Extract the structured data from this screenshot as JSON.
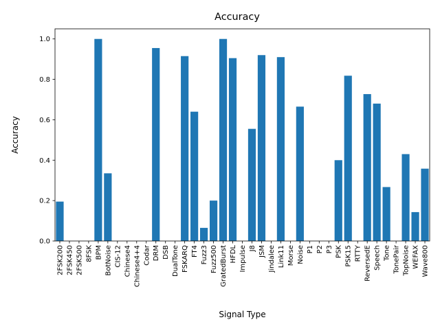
{
  "chart_data": {
    "type": "bar",
    "title": "Accuracy",
    "xlabel": "Signal Type",
    "ylabel": "Accuracy",
    "ylim": [
      0.0,
      1.05
    ],
    "yticks": [
      0.0,
      0.2,
      0.4,
      0.6,
      0.8,
      1.0
    ],
    "ytick_labels": [
      "0.0",
      "0.2",
      "0.4",
      "0.6",
      "0.8",
      "1.0"
    ],
    "grid": false,
    "bar_color": "#1f77b4",
    "categories": [
      "2FSK200",
      "2FSK450",
      "2FSK500",
      "8FSK",
      "BPM",
      "BotNoise",
      "CIS-12",
      "Chinese4",
      "Chinese4+4",
      "Codar",
      "DRM",
      "DSB",
      "DualTone",
      "FSKARQ",
      "FT4",
      "Fuzz3",
      "Fuzz500",
      "GratedBurst",
      "HFDL",
      "Impulse",
      "J8",
      "JSM",
      "Jindalee",
      "Link11",
      "Morse",
      "Noise",
      "P1",
      "P2",
      "P3",
      "PSK",
      "PSK15",
      "RTTY",
      "ReversedE",
      "Speech",
      "Tone",
      "TonePair",
      "TopNoise",
      "WEFAX",
      "Wave800"
    ],
    "values": [
      0.195,
      0,
      0,
      0,
      1.0,
      0.335,
      0,
      0,
      0,
      0,
      0.955,
      0,
      0,
      0.915,
      0.64,
      0.065,
      0.2,
      1.0,
      0.905,
      0,
      0.555,
      0.92,
      0,
      0.91,
      0,
      0.665,
      0,
      0,
      0,
      0.4,
      0.818,
      0,
      0.727,
      0.68,
      0.267,
      0,
      0.43,
      0.143,
      0.358
    ]
  }
}
